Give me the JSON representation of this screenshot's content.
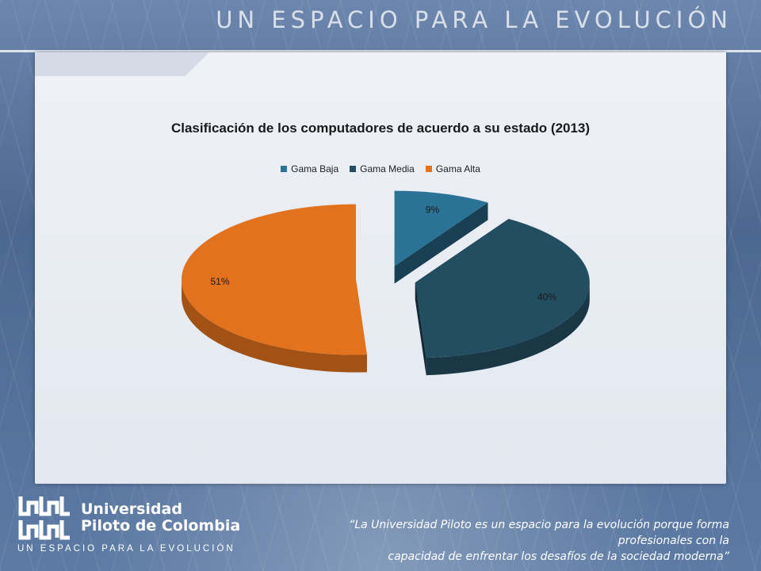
{
  "header": {
    "title": "UN ESPACIO PARA LA EVOLUCIÓN"
  },
  "chart_data": {
    "type": "pie",
    "title": "Clasificación de los computadores de acuerdo a su estado (2013)",
    "legend_position": "top",
    "categories": [
      "Gama Baja",
      "Gama Media",
      "Gama Alta"
    ],
    "values": [
      9,
      40,
      51
    ],
    "data_labels": [
      "9%",
      "40%",
      "51%"
    ],
    "colors": [
      "#2b7297",
      "#234d60",
      "#e2721e"
    ],
    "exploded": true,
    "three_d": true
  },
  "footer": {
    "logo_name_line1": "Universidad",
    "logo_name_line2": "Piloto de Colombia",
    "logo_tagline": "UN ESPACIO PARA LA EVOLUCIÓN",
    "quote_line1": "“La Universidad Piloto es un espacio para la evolución porque forma profesionales con la",
    "quote_line2": "capacidad de enfrentar los desafíos de la sociedad moderna”"
  }
}
